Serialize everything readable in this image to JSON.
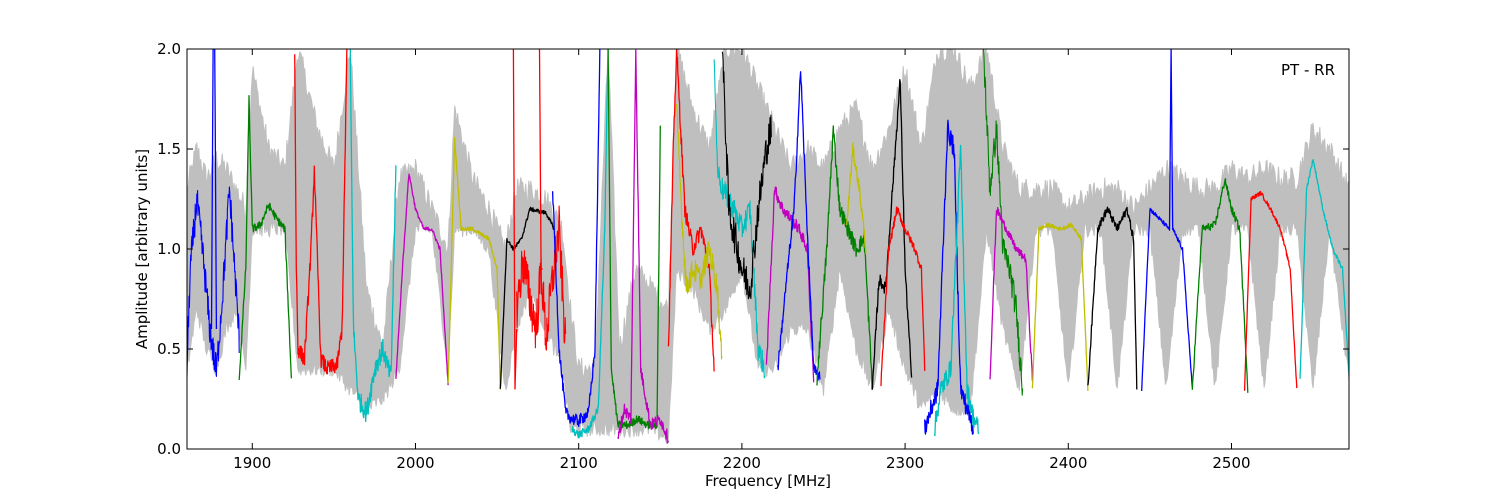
{
  "chart_data": {
    "type": "line",
    "title": "",
    "xlabel": "Frequency [MHz]",
    "ylabel": "Amplitude [arbitrary units]",
    "xlim": [
      1860,
      2572
    ],
    "ylim": [
      0.0,
      2.0
    ],
    "xticks": [
      1900,
      2000,
      2100,
      2200,
      2300,
      2400,
      2500
    ],
    "yticks": [
      0.0,
      0.5,
      1.0,
      1.5,
      2.0
    ],
    "xtick_labels": [
      "1900",
      "2000",
      "2100",
      "2200",
      "2300",
      "2400",
      "2500"
    ],
    "ytick_labels": [
      "0.0",
      "0.5",
      "1.0",
      "1.5",
      "2.0"
    ],
    "annotation": "PT - RR",
    "annotation_position": "top-right",
    "grid": false,
    "legend": "none",
    "envelope": {
      "color": "#bfbfbf",
      "x": [
        1860,
        1866,
        1872,
        1878,
        1884,
        1890,
        1896,
        1900,
        1910,
        1920,
        1928,
        1940,
        1950,
        1960,
        1970,
        1980,
        1990,
        2000,
        2010,
        2020,
        2024,
        2035,
        2045,
        2055,
        2062,
        2070,
        2080,
        2090,
        2095,
        2100,
        2110,
        2118,
        2125,
        2135,
        2145,
        2155,
        2160,
        2170,
        2180,
        2190,
        2200,
        2210,
        2220,
        2230,
        2240,
        2250,
        2260,
        2270,
        2280,
        2290,
        2300,
        2310,
        2320,
        2330,
        2340,
        2350,
        2360,
        2370,
        2380,
        2390,
        2400,
        2410,
        2420,
        2430,
        2440,
        2450,
        2460,
        2470,
        2480,
        2490,
        2500,
        2510,
        2520,
        2530,
        2540,
        2550,
        2560,
        2572
      ],
      "upper": [
        1.3,
        1.5,
        1.35,
        1.45,
        1.4,
        1.3,
        1.2,
        1.9,
        1.5,
        1.4,
        2.0,
        1.6,
        1.4,
        2.0,
        0.8,
        0.5,
        1.35,
        1.4,
        1.2,
        1.0,
        1.7,
        1.35,
        1.2,
        1.0,
        1.3,
        1.3,
        1.25,
        1.1,
        0.7,
        0.4,
        0.4,
        2.0,
        0.5,
        0.9,
        0.8,
        0.7,
        2.0,
        1.7,
        1.5,
        2.0,
        2.0,
        1.8,
        1.6,
        1.4,
        1.5,
        1.4,
        1.6,
        1.7,
        1.4,
        1.6,
        1.9,
        1.5,
        2.0,
        2.0,
        1.8,
        2.0,
        1.5,
        1.3,
        1.3,
        1.3,
        1.2,
        1.25,
        1.3,
        1.3,
        1.2,
        1.3,
        1.4,
        1.35,
        1.3,
        1.3,
        1.4,
        1.35,
        1.4,
        1.35,
        1.35,
        1.6,
        1.5,
        1.3
      ],
      "lower": [
        0.4,
        0.7,
        0.5,
        0.4,
        0.6,
        0.7,
        0.4,
        1.1,
        1.1,
        1.1,
        0.4,
        0.4,
        0.4,
        0.3,
        0.2,
        0.25,
        0.4,
        1.1,
        1.1,
        0.4,
        1.1,
        1.1,
        1.0,
        0.3,
        0.6,
        0.8,
        0.6,
        0.4,
        0.1,
        0.1,
        0.1,
        0.1,
        0.1,
        0.1,
        0.1,
        0.05,
        0.9,
        0.8,
        0.6,
        0.7,
        0.9,
        0.4,
        0.4,
        0.6,
        0.6,
        0.3,
        0.9,
        0.5,
        0.3,
        0.7,
        0.4,
        0.2,
        0.3,
        0.2,
        0.2,
        1.1,
        0.6,
        0.3,
        1.1,
        1.1,
        0.3,
        1.1,
        1.1,
        0.3,
        1.1,
        1.1,
        0.3,
        1.1,
        1.1,
        0.3,
        1.1,
        1.1,
        0.3,
        1.1,
        1.1,
        0.3,
        1.1,
        0.35
      ]
    },
    "series": [
      {
        "color": "#0000ff",
        "noise": 0.08,
        "x": [
          1860,
          1862,
          1866,
          1870,
          1874,
          1878,
          1882,
          1886,
          1890,
          1892
        ],
        "y": [
          0.4,
          0.9,
          1.25,
          0.95,
          0.6,
          0.38,
          0.8,
          1.3,
          0.8,
          0.55
        ]
      },
      {
        "color": "#0000ff",
        "noise": 0.0,
        "x": [
          1875,
          1876,
          1877,
          1878
        ],
        "y": [
          0.6,
          2.0,
          2.0,
          0.6
        ]
      },
      {
        "color": "#008000",
        "noise": 0.02,
        "x": [
          1892,
          1896,
          1898,
          1900,
          1905,
          1910,
          1915,
          1920,
          1924
        ],
        "y": [
          0.35,
          0.9,
          1.75,
          1.1,
          1.12,
          1.22,
          1.15,
          1.1,
          0.35
        ]
      },
      {
        "color": "#ff0000",
        "noise": 0.04,
        "x": [
          1926,
          1927,
          1928,
          1932,
          1936,
          1938,
          1942,
          1946,
          1952,
          1955,
          1958
        ],
        "y": [
          2.0,
          0.9,
          0.5,
          0.45,
          1.0,
          1.4,
          0.45,
          0.4,
          0.42,
          0.6,
          2.0
        ]
      },
      {
        "color": "#00bfbf",
        "noise": 0.05,
        "x": [
          1960,
          1962,
          1965,
          1970,
          1975,
          1980,
          1985,
          1988
        ],
        "y": [
          2.0,
          0.6,
          0.25,
          0.18,
          0.4,
          0.5,
          0.35,
          1.4
        ]
      },
      {
        "color": "#bf00bf",
        "noise": 0.01,
        "x": [
          1988,
          1992,
          1996,
          2000,
          2005,
          2010,
          2015,
          2020
        ],
        "y": [
          0.35,
          0.9,
          1.38,
          1.2,
          1.1,
          1.1,
          1.0,
          0.32
        ]
      },
      {
        "color": "#bfbf00",
        "noise": 0.01,
        "x": [
          2020,
          2024,
          2028,
          2035,
          2045,
          2050,
          2052
        ],
        "y": [
          0.32,
          1.55,
          1.1,
          1.1,
          1.05,
          0.9,
          0.3
        ]
      },
      {
        "color": "#000000",
        "noise": 0.01,
        "x": [
          2052,
          2056,
          2060,
          2065,
          2070,
          2080,
          2085
        ],
        "y": [
          0.3,
          1.05,
          1.0,
          1.05,
          1.2,
          1.18,
          1.1
        ]
      },
      {
        "color": "#ff0000",
        "noise": 0.0,
        "x": [
          2060,
          2061,
          2062
        ],
        "y": [
          2.0,
          0.3,
          0.6
        ]
      },
      {
        "color": "#ff0000",
        "noise": 0.12,
        "x": [
          2062,
          2066,
          2070,
          2074,
          2077,
          2080,
          2084,
          2088,
          2092
        ],
        "y": [
          0.7,
          0.95,
          0.75,
          0.6,
          0.9,
          0.55,
          0.85,
          1.1,
          0.5
        ]
      },
      {
        "color": "#ff0000",
        "noise": 0.0,
        "x": [
          2076,
          2077,
          2078
        ],
        "y": [
          2.0,
          0.9,
          0.9
        ]
      },
      {
        "color": "#0000ff",
        "noise": 0.03,
        "x": [
          2084,
          2088,
          2092,
          2096,
          2100,
          2106,
          2110,
          2113
        ],
        "y": [
          1.3,
          0.5,
          0.18,
          0.15,
          0.14,
          0.18,
          0.5,
          2.0
        ]
      },
      {
        "color": "#00bfbf",
        "noise": 0.02,
        "x": [
          2096,
          2100,
          2106,
          2112,
          2116,
          2118
        ],
        "y": [
          0.1,
          0.07,
          0.1,
          0.2,
          1.1,
          2.0
        ]
      },
      {
        "color": "#008000",
        "noise": 0.02,
        "x": [
          2118,
          2120,
          2124,
          2130,
          2136,
          2142,
          2148,
          2150
        ],
        "y": [
          2.0,
          0.4,
          0.12,
          0.12,
          0.15,
          0.12,
          0.12,
          1.6
        ]
      },
      {
        "color": "#bf00bf",
        "noise": 0.03,
        "x": [
          2124,
          2128,
          2132,
          2135,
          2138,
          2144,
          2150,
          2155
        ],
        "y": [
          0.05,
          0.2,
          0.15,
          2.0,
          0.4,
          0.12,
          0.15,
          0.05
        ]
      },
      {
        "color": "#ff0000",
        "noise": 0.04,
        "x": [
          2155,
          2158,
          2160,
          2165,
          2170,
          2175,
          2180,
          2183
        ],
        "y": [
          0.5,
          1.5,
          2.0,
          1.2,
          1.0,
          1.1,
          0.9,
          0.4
        ]
      },
      {
        "color": "#bfbf00",
        "noise": 0.06,
        "x": [
          2160,
          2163,
          2166,
          2170,
          2175,
          2180,
          2185,
          2188
        ],
        "y": [
          1.7,
          1.2,
          0.8,
          0.9,
          0.85,
          1.0,
          0.8,
          0.4
        ]
      },
      {
        "color": "#00bfbf",
        "noise": 0.06,
        "x": [
          2183,
          2185,
          2188,
          2195,
          2200,
          2205,
          2210,
          2214
        ],
        "y": [
          2.0,
          1.4,
          1.3,
          1.2,
          1.1,
          1.2,
          0.5,
          0.4
        ]
      },
      {
        "color": "#000000",
        "noise": 0.09,
        "x": [
          2188,
          2192,
          2196,
          2200,
          2205,
          2210,
          2215,
          2218
        ],
        "y": [
          2.0,
          1.2,
          1.05,
          0.9,
          0.8,
          1.2,
          1.5,
          1.6
        ]
      },
      {
        "color": "#bf00bf",
        "noise": 0.03,
        "x": [
          2215,
          2220,
          2225,
          2230,
          2235,
          2240,
          2244
        ],
        "y": [
          0.4,
          1.3,
          1.2,
          1.15,
          1.1,
          1.0,
          0.35
        ]
      },
      {
        "color": "#0000ff",
        "noise": 0.03,
        "x": [
          2222,
          2228,
          2232,
          2236,
          2240,
          2244,
          2248
        ],
        "y": [
          0.4,
          0.9,
          1.2,
          1.9,
          1.1,
          0.4,
          0.35
        ]
      },
      {
        "color": "#008000",
        "noise": 0.04,
        "x": [
          2246,
          2252,
          2256,
          2260,
          2265,
          2270,
          2275,
          2280
        ],
        "y": [
          0.35,
          1.0,
          1.6,
          1.2,
          1.1,
          1.0,
          1.05,
          0.3
        ]
      },
      {
        "color": "#bfbf00",
        "noise": 0.03,
        "x": [
          2264,
          2268,
          2272,
          2276
        ],
        "y": [
          1.1,
          1.5,
          1.3,
          1.0
        ]
      },
      {
        "color": "#000000",
        "noise": 0.03,
        "x": [
          2280,
          2284,
          2288,
          2294,
          2297,
          2300,
          2304
        ],
        "y": [
          0.3,
          0.85,
          0.8,
          1.5,
          1.85,
          0.9,
          0.35
        ]
      },
      {
        "color": "#ff0000",
        "noise": 0.02,
        "x": [
          2285,
          2290,
          2295,
          2300,
          2306,
          2310,
          2312
        ],
        "y": [
          0.3,
          1.0,
          1.2,
          1.1,
          1.0,
          0.9,
          0.4
        ]
      },
      {
        "color": "#0000ff",
        "noise": 0.05,
        "x": [
          2312,
          2316,
          2320,
          2326,
          2330,
          2334,
          2338,
          2342
        ],
        "y": [
          0.1,
          0.2,
          0.3,
          1.6,
          1.5,
          0.3,
          0.2,
          0.1
        ]
      },
      {
        "color": "#00bfbf",
        "noise": 0.05,
        "x": [
          2318,
          2322,
          2328,
          2334,
          2338,
          2342,
          2345
        ],
        "y": [
          0.1,
          0.3,
          0.4,
          1.5,
          0.3,
          0.15,
          0.1
        ]
      },
      {
        "color": "#008000",
        "noise": 0.07,
        "x": [
          2348,
          2352,
          2356,
          2360,
          2364,
          2368,
          2372
        ],
        "y": [
          2.0,
          1.3,
          1.6,
          1.0,
          0.9,
          0.7,
          0.3
        ]
      },
      {
        "color": "#bf00bf",
        "noise": 0.02,
        "x": [
          2352,
          2356,
          2362,
          2368,
          2374,
          2378
        ],
        "y": [
          0.35,
          1.2,
          1.1,
          1.0,
          0.95,
          0.35
        ]
      },
      {
        "color": "#bfbf00",
        "noise": 0.01,
        "x": [
          2378,
          2382,
          2388,
          2395,
          2402,
          2408,
          2412
        ],
        "y": [
          0.3,
          1.1,
          1.12,
          1.1,
          1.12,
          1.05,
          0.3
        ]
      },
      {
        "color": "#000000",
        "noise": 0.02,
        "x": [
          2412,
          2418,
          2424,
          2430,
          2436,
          2440,
          2442
        ],
        "y": [
          0.3,
          1.1,
          1.2,
          1.1,
          1.2,
          1.05,
          0.3
        ]
      },
      {
        "color": "#0000ff",
        "noise": 0.01,
        "x": [
          2445,
          2450,
          2456,
          2462,
          2463,
          2464,
          2470,
          2476
        ],
        "y": [
          0.3,
          1.2,
          1.15,
          1.1,
          2.0,
          1.1,
          1.0,
          0.3
        ]
      },
      {
        "color": "#008000",
        "noise": 0.02,
        "x": [
          2476,
          2482,
          2490,
          2496,
          2500,
          2505,
          2510
        ],
        "y": [
          0.3,
          1.1,
          1.12,
          1.35,
          1.2,
          1.1,
          0.3
        ]
      },
      {
        "color": "#ff0000",
        "noise": 0.01,
        "x": [
          2508,
          2512,
          2518,
          2524,
          2530,
          2536,
          2540
        ],
        "y": [
          0.3,
          1.25,
          1.28,
          1.2,
          1.1,
          0.9,
          0.3
        ]
      },
      {
        "color": "#00bfbf",
        "noise": 0.01,
        "x": [
          2542,
          2546,
          2550,
          2556,
          2562,
          2568,
          2572
        ],
        "y": [
          0.35,
          1.3,
          1.45,
          1.2,
          1.0,
          0.9,
          0.38
        ]
      }
    ]
  }
}
